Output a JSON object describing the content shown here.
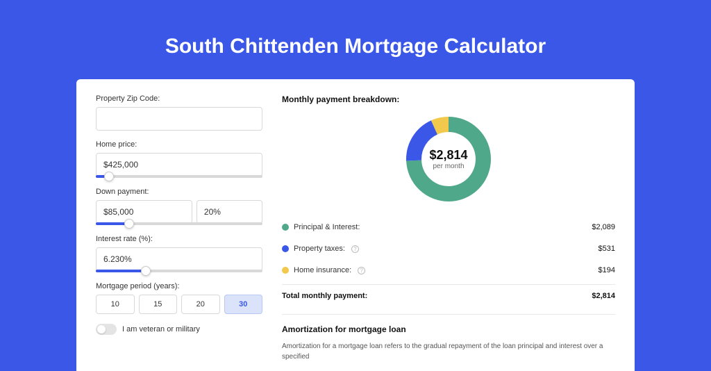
{
  "page": {
    "title": "South Chittenden Mortgage Calculator",
    "background_color": "#3a57e8",
    "card_background": "#ffffff"
  },
  "form": {
    "zip": {
      "label": "Property Zip Code:",
      "value": ""
    },
    "home_price": {
      "label": "Home price:",
      "value": "$425,000",
      "slider_pct": 8
    },
    "down_payment": {
      "label": "Down payment:",
      "value": "$85,000",
      "pct": "20%",
      "slider_pct": 20
    },
    "interest_rate": {
      "label": "Interest rate (%):",
      "value": "6.230%",
      "slider_pct": 30
    },
    "period": {
      "label": "Mortgage period (years):",
      "options": [
        "10",
        "15",
        "20",
        "30"
      ],
      "active_index": 3
    },
    "veteran": {
      "label": "I am veteran or military",
      "on": false
    }
  },
  "breakdown": {
    "title": "Monthly payment breakdown:",
    "center": {
      "amount": "$2,814",
      "sub": "per month"
    },
    "donut": {
      "type": "donut",
      "radius": 50,
      "stroke_width": 22,
      "background": "#ffffff",
      "slices": [
        {
          "label": "Principal & Interest:",
          "value": "$2,089",
          "pct": 74.2,
          "color": "#4fa88a"
        },
        {
          "label": "Property taxes:",
          "value": "$531",
          "pct": 18.9,
          "color": "#3a57e8",
          "info": true
        },
        {
          "label": "Home insurance:",
          "value": "$194",
          "pct": 6.9,
          "color": "#f2c94c",
          "info": true
        }
      ]
    },
    "total": {
      "label": "Total monthly payment:",
      "value": "$2,814"
    }
  },
  "amortization": {
    "title": "Amortization for mortgage loan",
    "text": "Amortization for a mortgage loan refers to the gradual repayment of the loan principal and interest over a specified"
  }
}
